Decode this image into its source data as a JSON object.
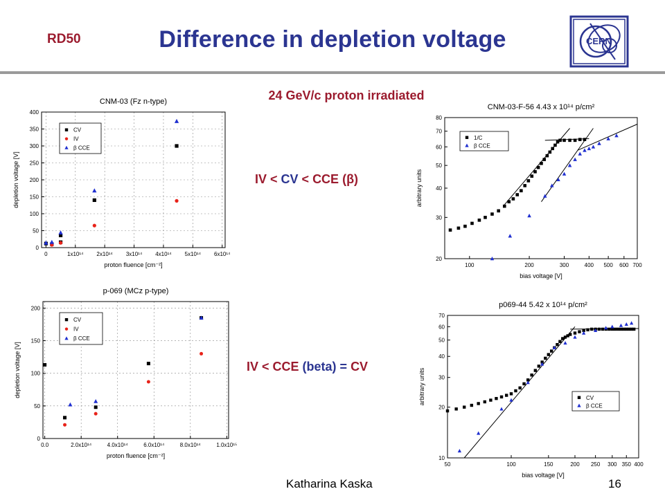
{
  "header": {
    "badge": "RD50",
    "title": "Difference in depletion voltage"
  },
  "subtitle": "24 GeV/c proton irradiated",
  "relations": [
    {
      "parts": [
        "IV",
        " < ",
        "CV",
        " < ",
        "CCE",
        " (β)"
      ]
    },
    {
      "parts": [
        "IV",
        " < ",
        "CCE",
        " (beta) = ",
        "CV"
      ]
    }
  ],
  "footer": {
    "author": "Katharina Kaska",
    "page": "16"
  },
  "colors": {
    "title": "#2b3591",
    "accent": "#9b1b2e",
    "series_cv": "#000000",
    "series_iv": "#e8231a",
    "series_cce": "#1f2fd0"
  },
  "chart_data": [
    {
      "id": "cnm03",
      "type": "scatter",
      "title": "CNM-03 (Fz n-type)",
      "xlabel": "proton fluence [cm⁻²]",
      "ylabel": "depletion voltage [V]",
      "xlim": [
        -15000000000000.0,
        610000000000000.0
      ],
      "ylim": [
        0,
        400
      ],
      "xticks": [
        {
          "v": 0,
          "label": "0"
        },
        {
          "v": 100000000000000.0,
          "label": "1x10¹⁴"
        },
        {
          "v": 200000000000000.0,
          "label": "2x10¹⁴"
        },
        {
          "v": 300000000000000.0,
          "label": "3x10¹⁴"
        },
        {
          "v": 400000000000000.0,
          "label": "4x10¹⁴"
        },
        {
          "v": 500000000000000.0,
          "label": "5x10¹⁴"
        },
        {
          "v": 600000000000000.0,
          "label": "6x10¹⁴"
        }
      ],
      "yticks": [
        0,
        50,
        100,
        150,
        200,
        250,
        300,
        350,
        400
      ],
      "grid": true,
      "legend": "top-left",
      "series": [
        {
          "name": "CV",
          "marker": "square",
          "color": "#000000",
          "points": [
            [
              0,
              12
            ],
            [
              20000000000000.0,
              10
            ],
            [
              50000000000000.0,
              36
            ],
            [
              50000000000000.0,
              16
            ],
            [
              165000000000000.0,
              140
            ],
            [
              445000000000000.0,
              300
            ]
          ]
        },
        {
          "name": "IV",
          "marker": "circle",
          "color": "#e8231a",
          "points": [
            [
              20000000000000.0,
              8
            ],
            [
              50000000000000.0,
              14
            ],
            [
              165000000000000.0,
              65
            ],
            [
              445000000000000.0,
              138
            ]
          ]
        },
        {
          "name": "β CCE",
          "marker": "triangle",
          "color": "#1f2fd0",
          "points": [
            [
              0,
              14
            ],
            [
              20000000000000.0,
              16
            ],
            [
              50000000000000.0,
              44
            ],
            [
              165000000000000.0,
              168
            ],
            [
              445000000000000.0,
              373
            ]
          ]
        }
      ]
    },
    {
      "id": "p069",
      "type": "scatter",
      "title": "p-069 (MCz p-type)",
      "xlabel": "proton fluence [cm⁻²]",
      "ylabel": "depletion voltage [V]",
      "xlim": [
        -10000000000000.0,
        1010000000000000.0
      ],
      "ylim": [
        0,
        210
      ],
      "xticks": [
        {
          "v": 0,
          "label": "0.0"
        },
        {
          "v": 200000000000000.0,
          "label": "2.0x10¹⁴"
        },
        {
          "v": 400000000000000.0,
          "label": "4.0x10¹⁴"
        },
        {
          "v": 600000000000000.0,
          "label": "6.0x10¹⁴"
        },
        {
          "v": 800000000000000.0,
          "label": "8.0x10¹⁴"
        },
        {
          "v": 1000000000000000.0,
          "label": "1.0x10¹⁵"
        }
      ],
      "yticks": [
        0,
        50,
        100,
        150,
        200
      ],
      "grid": true,
      "legend": "top-left",
      "series": [
        {
          "name": "CV",
          "marker": "square",
          "color": "#000000",
          "points": [
            [
              0,
              113
            ],
            [
              110000000000000.0,
              32
            ],
            [
              280000000000000.0,
              48
            ],
            [
              570000000000000.0,
              115
            ],
            [
              860000000000000.0,
              185
            ]
          ]
        },
        {
          "name": "IV",
          "marker": "circle",
          "color": "#e8231a",
          "points": [
            [
              110000000000000.0,
              21
            ],
            [
              280000000000000.0,
              38
            ],
            [
              570000000000000.0,
              87
            ],
            [
              860000000000000.0,
              130
            ]
          ]
        },
        {
          "name": "β CCE",
          "marker": "triangle",
          "color": "#1f2fd0",
          "points": [
            [
              140000000000000.0,
              52
            ],
            [
              280000000000000.0,
              57
            ],
            [
              860000000000000.0,
              185
            ]
          ]
        }
      ]
    },
    {
      "id": "cnm03f56",
      "type": "scatter",
      "title": "CNM-03-F-56  4.43 x 10¹⁴ p/cm²",
      "xlabel": "bias voltage [V]",
      "ylabel": "arbitrary units",
      "xscale": "log",
      "yscale": "log",
      "xlim": [
        75,
        700
      ],
      "ylim": [
        20,
        80
      ],
      "xticks": [
        {
          "v": 100,
          "label": "100"
        },
        {
          "v": 200,
          "label": "200"
        },
        {
          "v": 300,
          "label": "300"
        },
        {
          "v": 400,
          "label": "400"
        },
        {
          "v": 500,
          "label": "500"
        },
        {
          "v": 600,
          "label": "600"
        },
        {
          "v": 700,
          "label": "700"
        }
      ],
      "yticks": [
        20,
        30,
        40,
        50,
        60,
        70,
        80
      ],
      "legend": "top-left",
      "series": [
        {
          "name": "1/C",
          "marker": "square",
          "color": "#000000",
          "points": [
            [
              80,
              26.5
            ],
            [
              88,
              27
            ],
            [
              95,
              27.5
            ],
            [
              103,
              28.3
            ],
            [
              112,
              29.2
            ],
            [
              120,
              30
            ],
            [
              130,
              31
            ],
            [
              140,
              32
            ],
            [
              150,
              33.5
            ],
            [
              158,
              35
            ],
            [
              166,
              36
            ],
            [
              174,
              37.5
            ],
            [
              182,
              39
            ],
            [
              190,
              41
            ],
            [
              198,
              43
            ],
            [
              206,
              45
            ],
            [
              214,
              47
            ],
            [
              222,
              49
            ],
            [
              230,
              51
            ],
            [
              238,
              53
            ],
            [
              246,
              55
            ],
            [
              254,
              57
            ],
            [
              262,
              59
            ],
            [
              270,
              61
            ],
            [
              278,
              63
            ],
            [
              286,
              64
            ],
            [
              300,
              64
            ],
            [
              320,
              64
            ],
            [
              340,
              64
            ],
            [
              360,
              64.5
            ],
            [
              380,
              64.5
            ]
          ]
        },
        {
          "name": "β CCE",
          "marker": "triangle",
          "color": "#1f2fd0",
          "points": [
            [
              130,
              20
            ],
            [
              160,
              25
            ],
            [
              200,
              30.5
            ],
            [
              240,
              37
            ],
            [
              260,
              41
            ],
            [
              280,
              43.5
            ],
            [
              300,
              46
            ],
            [
              320,
              50
            ],
            [
              340,
              53
            ],
            [
              360,
              56
            ],
            [
              380,
              58
            ],
            [
              400,
              59
            ],
            [
              420,
              60
            ],
            [
              450,
              62
            ],
            [
              500,
              65
            ],
            [
              550,
              67
            ]
          ]
        }
      ],
      "fit_lines": [
        {
          "from": [
            150,
            34
          ],
          "to": [
            320,
            72
          ]
        },
        {
          "from": [
            240,
            64
          ],
          "to": [
            400,
            65
          ]
        },
        {
          "from": [
            230,
            35
          ],
          "to": [
            420,
            72
          ]
        },
        {
          "from": [
            350,
            58
          ],
          "to": [
            700,
            75
          ]
        }
      ]
    },
    {
      "id": "p06944",
      "type": "scatter",
      "title": "p069-44  5.42 x 10¹⁴ p/cm²",
      "xlabel": "bias voltage [V]",
      "ylabel": "arbitrary units",
      "xscale": "log",
      "yscale": "log",
      "xlim": [
        50,
        400
      ],
      "ylim": [
        10,
        70
      ],
      "xticks": [
        {
          "v": 50,
          "label": "50"
        },
        {
          "v": 100,
          "label": "100"
        },
        {
          "v": 150,
          "label": "150"
        },
        {
          "v": 200,
          "label": "200"
        },
        {
          "v": 250,
          "label": "250"
        },
        {
          "v": 300,
          "label": "300"
        },
        {
          "v": 350,
          "label": "350"
        },
        {
          "v": 400,
          "label": "400"
        }
      ],
      "yticks": [
        10,
        20,
        30,
        40,
        50,
        60,
        70
      ],
      "legend": "bottom-right",
      "series": [
        {
          "name": "CV",
          "marker": "square",
          "color": "#000000",
          "points": [
            [
              50,
              19
            ],
            [
              55,
              19.5
            ],
            [
              60,
              20
            ],
            [
              65,
              20.5
            ],
            [
              70,
              21
            ],
            [
              75,
              21.5
            ],
            [
              80,
              22
            ],
            [
              85,
              22.5
            ],
            [
              90,
              23
            ],
            [
              95,
              23.5
            ],
            [
              100,
              24
            ],
            [
              105,
              25
            ],
            [
              110,
              26
            ],
            [
              115,
              27.5
            ],
            [
              120,
              29
            ],
            [
              125,
              31
            ],
            [
              130,
              33
            ],
            [
              135,
              35
            ],
            [
              140,
              37
            ],
            [
              145,
              39
            ],
            [
              150,
              41
            ],
            [
              155,
              43
            ],
            [
              160,
              45
            ],
            [
              165,
              47
            ],
            [
              170,
              49
            ],
            [
              175,
              51
            ],
            [
              180,
              52
            ],
            [
              185,
              53
            ],
            [
              190,
              54
            ],
            [
              200,
              55
            ],
            [
              210,
              56
            ],
            [
              220,
              57
            ],
            [
              230,
              57.5
            ],
            [
              240,
              58
            ],
            [
              250,
              58
            ],
            [
              260,
              58
            ],
            [
              270,
              58
            ],
            [
              280,
              58
            ],
            [
              290,
              58
            ],
            [
              300,
              58
            ],
            [
              310,
              58
            ],
            [
              320,
              58
            ],
            [
              330,
              58
            ],
            [
              340,
              58
            ],
            [
              350,
              58
            ],
            [
              360,
              58
            ],
            [
              370,
              58
            ],
            [
              380,
              58
            ]
          ]
        },
        {
          "name": "β CCE",
          "marker": "triangle",
          "color": "#1f2fd0",
          "points": [
            [
              57,
              11
            ],
            [
              70,
              14
            ],
            [
              90,
              19.5
            ],
            [
              100,
              22
            ],
            [
              120,
              28
            ],
            [
              140,
              36
            ],
            [
              160,
              45
            ],
            [
              180,
              48
            ],
            [
              200,
              52
            ],
            [
              220,
              55
            ],
            [
              250,
              57
            ],
            [
              280,
              59
            ],
            [
              300,
              60
            ],
            [
              330,
              61
            ],
            [
              350,
              62
            ],
            [
              370,
              63
            ]
          ]
        }
      ],
      "fit_lines": [
        {
          "from": [
            60,
            10
          ],
          "to": [
            200,
            60
          ]
        },
        {
          "from": [
            190,
            58
          ],
          "to": [
            400,
            58.5
          ]
        }
      ]
    }
  ]
}
